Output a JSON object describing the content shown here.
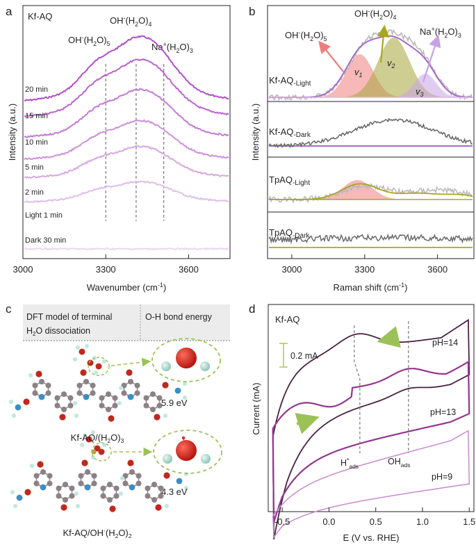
{
  "panels": {
    "a": {
      "letter": "a",
      "sample": "Kf-AQ",
      "peaks": [
        {
          "main": "OH",
          "sup": "-",
          "mid": "(H",
          "sub": "2",
          "tail": "O)",
          "sub2": "5",
          "x": 3300
        },
        {
          "main": "OH",
          "sup": "-",
          "mid": "(H",
          "sub": "2",
          "tail": "O)",
          "sub2": "4",
          "x": 3410
        },
        {
          "main": "Na",
          "sup": "+",
          "mid": "(H",
          "sub": "2",
          "tail": "O)",
          "sub2": "3",
          "x": 3510
        }
      ],
      "curve_labels": [
        "20 min",
        "15 min",
        "10 min",
        "5 min",
        "2 min",
        "Light 1 min",
        "Dark 30 min"
      ],
      "xlabel": "Wavenumber (cm",
      "xlabel_sup": "-1",
      "xlabel_end": ")",
      "ylabel": "Intensity (a.u.)",
      "xticks": [
        "3000",
        "3300",
        "3600"
      ]
    },
    "b": {
      "letter": "b",
      "peak_labels": [
        {
          "main": "OH",
          "sup": "-",
          "mid": "(H",
          "sub": "2",
          "tail": "O)",
          "sub2": "5"
        },
        {
          "main": "OH",
          "sup": "-",
          "mid": "(H",
          "sub": "2",
          "tail": "O)",
          "sub2": "4"
        },
        {
          "main": "Na",
          "sup": "+",
          "mid": "(H",
          "sub": "2",
          "tail": "O)",
          "sub2": "3"
        }
      ],
      "nu_labels": [
        {
          "v": "v",
          "s": "1"
        },
        {
          "v": "v",
          "s": "2"
        },
        {
          "v": "v",
          "s": "3"
        }
      ],
      "rows": [
        {
          "name": "Kf-AQ",
          "sub": "-Light"
        },
        {
          "name": "Kf-AQ",
          "sub": "-Dark"
        },
        {
          "name": "TpAQ",
          "sub": "-Light"
        },
        {
          "name": "TpAQ",
          "sub": "-Dark"
        }
      ],
      "xlabel": "Raman shift (cm",
      "xlabel_sup": "-1",
      "xlabel_end": ")",
      "ylabel": "Intensity (a.u.)",
      "xticks": [
        "3000",
        "3300",
        "3600"
      ]
    },
    "c": {
      "letter": "c",
      "header_left_1": "DFT model of terminal",
      "header_left_2a": "H",
      "header_left_2sub": "2",
      "header_left_2b": "O dissociation",
      "header_right": "O-H bond energy",
      "energy_top": "5.9 eV",
      "energy_bottom": "4.3 eV",
      "model_top": {
        "a": "Kf-AQ/(H",
        "s": "2",
        "b": "O)",
        "s2": "3"
      },
      "model_bottom": {
        "a": "Kf-AQ/OH",
        "sup": "-",
        "b": "(H",
        "s": "2",
        "c": "O)",
        "s2": "2"
      }
    },
    "d": {
      "letter": "d",
      "sample": "Kf-AQ",
      "scale_bar": "0.2 mA",
      "ph_labels": [
        "pH=14",
        "pH=13",
        "pH=9"
      ],
      "h_ads": {
        "main": "H",
        "sup": "*",
        "sub": "ads"
      },
      "oh_ads": {
        "main": "OH",
        "sub": "ads"
      },
      "xlabel": "E (V vs. RHE)",
      "ylabel": "Current (mA)",
      "xticks": [
        "-0.5",
        "0.0",
        "0.5",
        "1.0",
        "1.5"
      ]
    }
  },
  "colors": {
    "raman_series": [
      "#b04fc6",
      "#ba63cd",
      "#c37ad5",
      "#cd92dc",
      "#d7a8e3",
      "#e0bfea",
      "#ebd6f0"
    ],
    "purple": "#a86ac9",
    "olive": "#a8a622",
    "gray": "#6a6a6a",
    "red_fill": "#f07d7d",
    "olive_fill": "#a5a53a",
    "violet_fill": "#c8a2e6",
    "cv": [
      "#4a2040",
      "#93358f",
      "#c88ad0"
    ],
    "arrow_green": "#a9c24a"
  },
  "chart_data": [
    {
      "panel": "a",
      "type": "line",
      "xlim": [
        3000,
        3750
      ],
      "series_labels": [
        "20 min",
        "15 min",
        "10 min",
        "5 min",
        "2 min",
        "Light 1 min",
        "Dark 30 min"
      ],
      "peak_positions": [
        3300,
        3410,
        3510
      ]
    },
    {
      "panel": "b",
      "type": "line",
      "xlim": [
        2900,
        3750
      ],
      "rows": [
        "Kf-AQ-Light",
        "Kf-AQ-Dark",
        "TpAQ-Light",
        "TpAQ-Dark"
      ],
      "fit_peaks": [
        3280,
        3420,
        3550
      ]
    },
    {
      "panel": "d",
      "type": "line",
      "xlim": [
        -0.65,
        1.55
      ],
      "series_labels": [
        "pH=14",
        "pH=13",
        "pH=9"
      ],
      "marker_positions": [
        0.3,
        0.85
      ]
    }
  ]
}
